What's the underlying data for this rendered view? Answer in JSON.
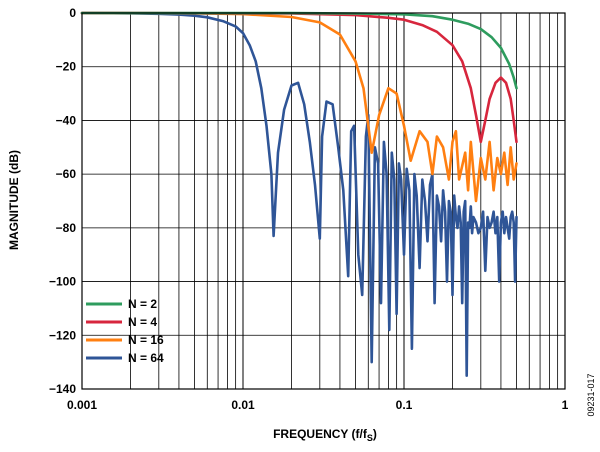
{
  "chart_data": {
    "type": "line",
    "xlabel": "FREQUENCY (f/f",
    "xlabel_sub": "S",
    "xlabel_close": ")",
    "ylabel": "MAGNITUDE (dB)",
    "x_scale": "log",
    "xlim": [
      0.001,
      1
    ],
    "ylim": [
      -140,
      0
    ],
    "x_ticks": [
      0.001,
      0.01,
      0.1,
      1
    ],
    "x_tick_labels": [
      "0.001",
      "0.01",
      "0.1",
      "1"
    ],
    "y_ticks": [
      0,
      -20,
      -40,
      -60,
      -80,
      -100,
      -120,
      -140
    ],
    "y_tick_labels": [
      "0",
      "−20",
      "−40",
      "−60",
      "−80",
      "−100",
      "−120",
      "−140"
    ],
    "grid": true,
    "legend_position": "bottom-left",
    "figure_id": "09231-017",
    "series": [
      {
        "name": "N = 2",
        "color": "#2e9c5e",
        "x": [
          0.001,
          0.02,
          0.05,
          0.1,
          0.15,
          0.2,
          0.25,
          0.3,
          0.35,
          0.4,
          0.45,
          0.48,
          0.5
        ],
        "y": [
          0,
          -0.05,
          -0.2,
          -0.5,
          -1.2,
          -2.5,
          -4,
          -6,
          -9,
          -13,
          -19,
          -24,
          -28
        ]
      },
      {
        "name": "N = 4",
        "color": "#d7263d",
        "x": [
          0.001,
          0.02,
          0.05,
          0.08,
          0.1,
          0.13,
          0.16,
          0.2,
          0.23,
          0.26,
          0.28,
          0.3,
          0.32,
          0.34,
          0.37,
          0.4,
          0.43,
          0.46,
          0.48,
          0.5
        ],
        "y": [
          0,
          -0.2,
          -0.8,
          -1.8,
          -2.5,
          -4.5,
          -7,
          -12,
          -18,
          -28,
          -38,
          -48,
          -40,
          -32,
          -26,
          -24,
          -26,
          -32,
          -40,
          -48
        ]
      },
      {
        "name": "N = 16",
        "color": "#ff7f11",
        "x": [
          0.001,
          0.005,
          0.01,
          0.02,
          0.03,
          0.04,
          0.05,
          0.056,
          0.063,
          0.07,
          0.08,
          0.09,
          0.1,
          0.11,
          0.125,
          0.14,
          0.15,
          0.16,
          0.175,
          0.19,
          0.2,
          0.21,
          0.22,
          0.24,
          0.25,
          0.26,
          0.28,
          0.3,
          0.32,
          0.34,
          0.36,
          0.38,
          0.4,
          0.42,
          0.44,
          0.46,
          0.48,
          0.5
        ],
        "y": [
          0,
          -0.1,
          -0.4,
          -1.5,
          -3.5,
          -8,
          -18,
          -28,
          -52,
          -38,
          -28,
          -30,
          -42,
          -55,
          -44,
          -48,
          -60,
          -46,
          -50,
          -62,
          -48,
          -44,
          -62,
          -52,
          -66,
          -48,
          -70,
          -54,
          -62,
          -48,
          -66,
          -54,
          -60,
          -52,
          -64,
          -50,
          -62,
          -56
        ]
      },
      {
        "name": "N = 64",
        "color": "#2f5597",
        "x": [
          0.001,
          0.002,
          0.003,
          0.004,
          0.005,
          0.006,
          0.0075,
          0.009,
          0.01,
          0.011,
          0.012,
          0.013,
          0.014,
          0.015,
          0.0155,
          0.0165,
          0.018,
          0.02,
          0.022,
          0.024,
          0.026,
          0.028,
          0.03,
          0.031,
          0.033,
          0.036,
          0.039,
          0.042,
          0.045,
          0.047,
          0.049,
          0.052,
          0.055,
          0.058,
          0.06,
          0.063,
          0.066,
          0.069,
          0.072,
          0.075,
          0.078,
          0.081,
          0.084,
          0.087,
          0.09,
          0.093,
          0.096,
          0.1,
          0.104,
          0.108,
          0.112,
          0.116,
          0.12,
          0.125,
          0.13,
          0.135,
          0.14,
          0.145,
          0.15,
          0.155,
          0.16,
          0.165,
          0.17,
          0.175,
          0.18,
          0.185,
          0.19,
          0.195,
          0.2,
          0.205,
          0.21,
          0.215,
          0.22,
          0.225,
          0.23,
          0.235,
          0.24,
          0.245,
          0.25,
          0.255,
          0.26,
          0.265,
          0.27,
          0.28,
          0.29,
          0.3,
          0.31,
          0.32,
          0.33,
          0.34,
          0.35,
          0.36,
          0.37,
          0.38,
          0.39,
          0.4,
          0.41,
          0.42,
          0.43,
          0.44,
          0.45,
          0.46,
          0.47,
          0.48,
          0.49,
          0.5
        ],
        "y": [
          0,
          -0.1,
          -0.3,
          -0.6,
          -1,
          -1.6,
          -3,
          -5,
          -7.5,
          -12,
          -18,
          -28,
          -42,
          -60,
          -83,
          -52,
          -36,
          -27,
          -26,
          -34,
          -48,
          -64,
          -84,
          -46,
          -33,
          -34,
          -50,
          -66,
          -98,
          -44,
          -42,
          -90,
          -105,
          -46,
          -38,
          -130,
          -50,
          -56,
          -108,
          -48,
          -60,
          -118,
          -52,
          -62,
          -112,
          -56,
          -62,
          -90,
          -58,
          -66,
          -125,
          -60,
          -68,
          -95,
          -62,
          -70,
          -85,
          -64,
          -60,
          -108,
          -68,
          -72,
          -85,
          -66,
          -74,
          -100,
          -70,
          -74,
          -105,
          -68,
          -76,
          -80,
          -72,
          -78,
          -108,
          -74,
          -70,
          -135,
          -78,
          -80,
          -72,
          -82,
          -76,
          -78,
          -82,
          -80,
          -74,
          -96,
          -76,
          -80,
          -78,
          -74,
          -82,
          -76,
          -100,
          -78,
          -74,
          -82,
          -76,
          -80,
          -84,
          -76,
          -74,
          -78,
          -100,
          -76
        ]
      }
    ]
  }
}
